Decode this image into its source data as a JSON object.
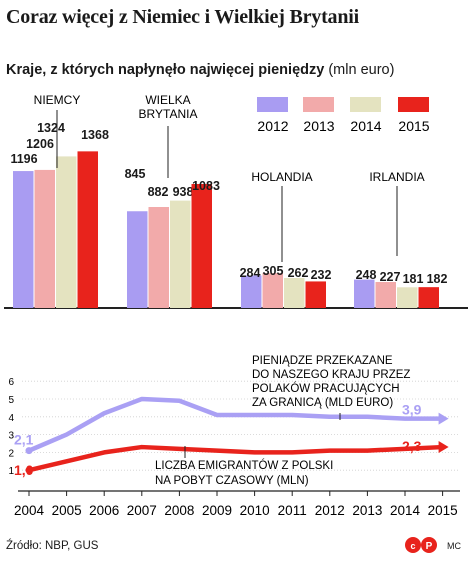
{
  "title": "Coraz więcej z Niemiec i Wielkiej Brytanii",
  "subtitle_bold": "Kraje, z których napłynęło najwięcej pieniędzy",
  "subtitle_unit": "(mln euro)",
  "source": "Źródło: NBP, GUS",
  "credit": "MC",
  "colors": {
    "2012": "#a99cf2",
    "2013": "#f2aaaa",
    "2014": "#e4e3c0",
    "2015": "#e8231c",
    "line_top": "#aaa0f4",
    "line_bottom": "#e8231c"
  },
  "chart_data": [
    {
      "type": "bar",
      "title": "Kraje, z których napłynęło najwięcej pieniędzy (mln euro)",
      "categories": [
        "NIEMCY",
        "WIELKA BRYTANIA",
        "HOLANDIA",
        "IRLANDIA"
      ],
      "series": [
        {
          "name": "2012",
          "values": [
            1196,
            845,
            284,
            248
          ]
        },
        {
          "name": "2013",
          "values": [
            1206,
            882,
            305,
            227
          ]
        },
        {
          "name": "2014",
          "values": [
            1324,
            938,
            262,
            181
          ]
        },
        {
          "name": "2015",
          "values": [
            1368,
            1083,
            232,
            182
          ]
        }
      ],
      "legend": "top-right"
    },
    {
      "type": "line",
      "x": [
        2004,
        2005,
        2006,
        2007,
        2008,
        2009,
        2010,
        2011,
        2012,
        2013,
        2014,
        2015
      ],
      "xticks": [
        "2004",
        "2005",
        "2006",
        "2007",
        "2008",
        "2009",
        "2010",
        "2011",
        "2012",
        "2013",
        "2014",
        "2015"
      ],
      "yticks": [
        "1",
        "2",
        "3",
        "4",
        "5",
        "6"
      ],
      "ylim": [
        0,
        6
      ],
      "grid": true,
      "series": [
        {
          "name": "PIENIĄDZE PRZEKAZANE DO NASZEGO KRAJU PRZEZ POLAKÓW PRACUJĄCYCH ZA GRANICĄ (MLD EURO)",
          "values": [
            2.1,
            3.0,
            4.2,
            5.0,
            4.9,
            4.1,
            4.1,
            4.1,
            4.0,
            4.0,
            3.9,
            3.9
          ],
          "start_label": "2,1",
          "end_label": "3,9"
        },
        {
          "name": "LICZBA EMIGRANTÓW Z POLSKI NA POBYT CZASOWY (MLN)",
          "values": [
            1.0,
            1.5,
            2.0,
            2.3,
            2.2,
            2.1,
            2.0,
            2.0,
            2.1,
            2.1,
            2.2,
            2.3
          ],
          "start_label": "1,0",
          "end_label": "2,3"
        }
      ],
      "annotations": [
        "PIENIĄDZE PRZEKAZANE",
        "DO NASZEGO KRAJU PRZEZ",
        "POLAKÓW PRACUJĄCYCH",
        "ZA GRANICĄ (MLD EURO)",
        "LICZBA EMIGRANTÓW Z POLSKI",
        "NA POBYT CZASOWY (MLN)"
      ]
    }
  ]
}
